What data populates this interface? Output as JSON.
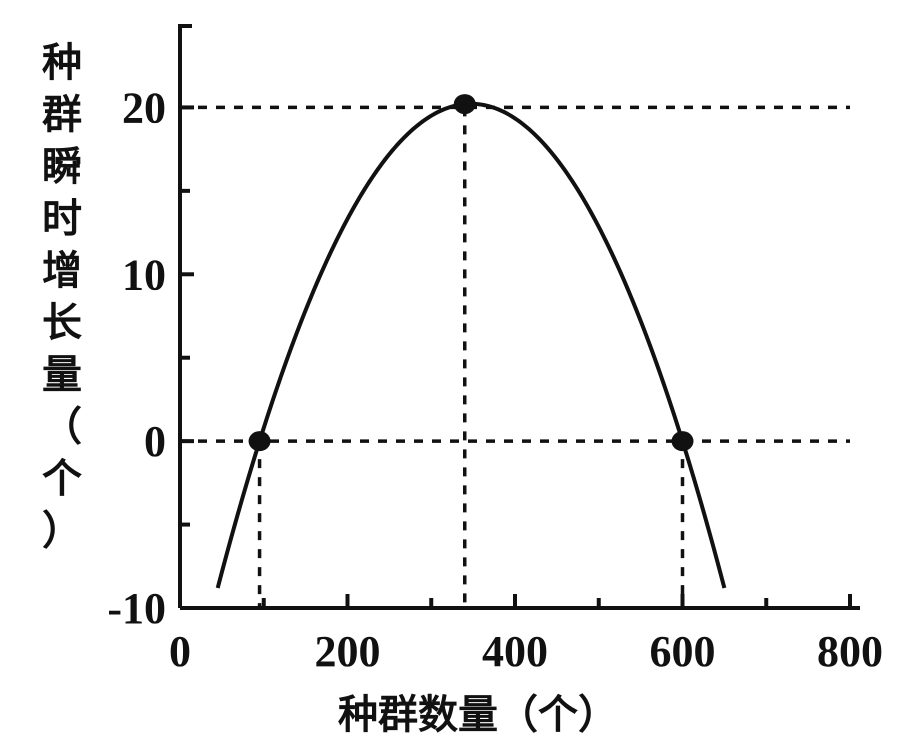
{
  "chart_data": {
    "type": "line",
    "xlabel": "种群数量（个）",
    "ylabel_chars": [
      "种",
      "群",
      "瞬",
      "时",
      "增",
      "长",
      "量",
      "（",
      "个",
      "）"
    ],
    "xlim": [
      0,
      800
    ],
    "ylim": [
      -10,
      25
    ],
    "x_ticks": [
      0,
      200,
      400,
      600,
      800
    ],
    "x_tick_labels": [
      "0",
      "200",
      "400",
      "600",
      "800"
    ],
    "x_minor_ticks": [
      100,
      300,
      500,
      700
    ],
    "y_ticks": [
      -10,
      0,
      10,
      20
    ],
    "y_tick_labels": [
      "-10",
      "0",
      "10",
      "20"
    ],
    "y_minor_ticks": [
      -5,
      5,
      15
    ],
    "grid": false,
    "curve": {
      "shape": "parabola",
      "vertex": [
        340,
        20.2
      ],
      "roots": [
        95,
        600
      ],
      "x_range": [
        45,
        650
      ]
    },
    "points": [
      {
        "x": 95,
        "y": 0
      },
      {
        "x": 340,
        "y": 20.2
      },
      {
        "x": 600,
        "y": 0
      }
    ],
    "guide_lines": [
      {
        "kind": "horizontal",
        "y": 20,
        "x_to": 800
      },
      {
        "kind": "horizontal",
        "y": 0,
        "x_to": 800
      },
      {
        "kind": "vertical",
        "x": 95,
        "y_to": 0
      },
      {
        "kind": "vertical",
        "x": 340,
        "y_to": 20
      },
      {
        "kind": "vertical",
        "x": 600,
        "y_to": 0
      }
    ]
  }
}
